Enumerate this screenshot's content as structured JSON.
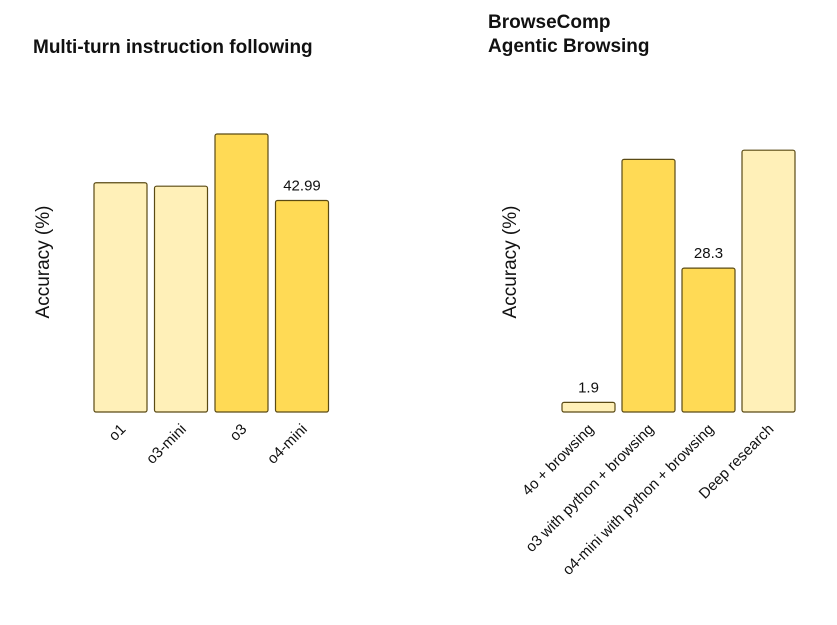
{
  "chart_data": [
    {
      "type": "bar",
      "title": "Multi-turn instruction following",
      "ylabel": "Accuracy (%)",
      "ylim": [
        0,
        62
      ],
      "grid": false,
      "categories": [
        "o1",
        "o3-mini",
        "o3",
        "o4-mini"
      ],
      "values": [
        46.6,
        45.9,
        56.51,
        42.99
      ],
      "colors": [
        "#FFF0B8",
        "#FFF0B8",
        "#FFDA55",
        "#FFDA55"
      ],
      "data_labels": [
        "",
        "",
        "",
        "42.99"
      ]
    },
    {
      "type": "bar",
      "title": [
        "BrowseComp",
        "Agentic Browsing"
      ],
      "ylabel": "Accuracy (%)",
      "ylim": [
        0,
        60
      ],
      "grid": false,
      "categories": [
        "4o + browsing",
        "o3 with python + browsing",
        "o4-mini with python + browsing",
        "Deep research"
      ],
      "values": [
        1.9,
        49.7,
        28.3,
        51.5
      ],
      "colors": [
        "#FFF0B8",
        "#FFDA55",
        "#FFDA55",
        "#FFF0B8"
      ],
      "data_labels": [
        "1.9",
        "",
        "28.3",
        ""
      ]
    }
  ]
}
